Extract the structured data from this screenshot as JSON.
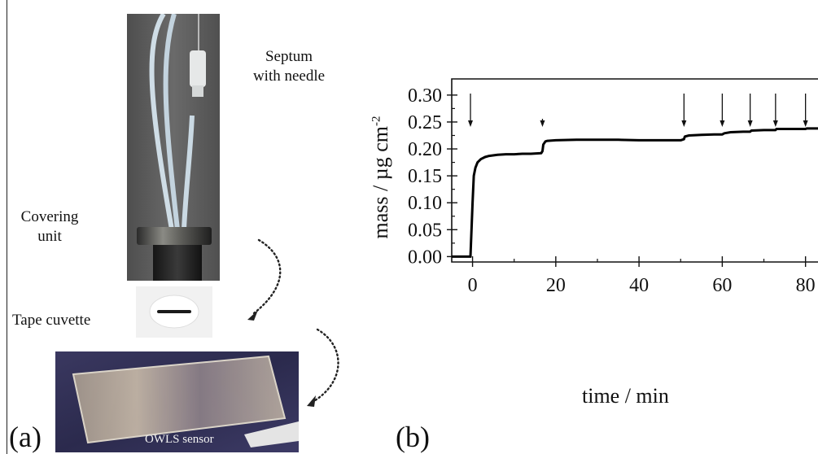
{
  "panel_a": {
    "label": "(a)",
    "septum_label_line1": "Septum",
    "septum_label_line2": "with needle",
    "covering_label_line1": "Covering",
    "covering_label_line2": "unit",
    "tape_label": "Tape cuvette",
    "sensor_label": "OWLS sensor"
  },
  "panel_b": {
    "label": "(b)"
  },
  "chart_data": {
    "type": "line",
    "xlabel": "time / min",
    "ylabel": "mass / µg cm",
    "ylabel_exp": "-2",
    "xlim": [
      -5,
      83
    ],
    "ylim": [
      -0.01,
      0.33
    ],
    "xticks": [
      0,
      20,
      40,
      60,
      80
    ],
    "xtick_labels": [
      "0",
      "20",
      "40",
      "60",
      "80"
    ],
    "yticks": [
      0.0,
      0.05,
      0.1,
      0.15,
      0.2,
      0.25,
      0.3
    ],
    "ytick_labels": [
      "0.00",
      "0.05",
      "0.10",
      "0.15",
      "0.20",
      "0.25",
      "0.30"
    ],
    "arrows_x": [
      -0.5,
      16.8,
      50.8,
      60.0,
      66.7,
      72.8,
      80.0
    ],
    "series": [
      {
        "x": [
          -5,
          -0.5,
          0,
          0.3,
          0.7,
          1.2,
          2,
          3,
          4,
          6,
          8,
          10,
          12,
          14,
          16.5,
          16.8,
          17,
          17.5,
          18,
          20,
          25,
          30,
          35,
          40,
          45,
          50,
          50.8,
          51,
          52,
          55,
          58,
          60,
          60.5,
          62,
          65,
          66.7,
          67,
          70,
          72.8,
          73,
          76,
          80,
          80.3,
          83
        ],
        "y": [
          0.0,
          0.0,
          0.1,
          0.15,
          0.165,
          0.175,
          0.181,
          0.185,
          0.187,
          0.189,
          0.19,
          0.19,
          0.191,
          0.191,
          0.192,
          0.196,
          0.208,
          0.214,
          0.215,
          0.216,
          0.217,
          0.217,
          0.217,
          0.216,
          0.216,
          0.216,
          0.218,
          0.223,
          0.225,
          0.226,
          0.227,
          0.227,
          0.229,
          0.231,
          0.232,
          0.232,
          0.234,
          0.235,
          0.235,
          0.237,
          0.237,
          0.237,
          0.238,
          0.238
        ]
      }
    ]
  }
}
